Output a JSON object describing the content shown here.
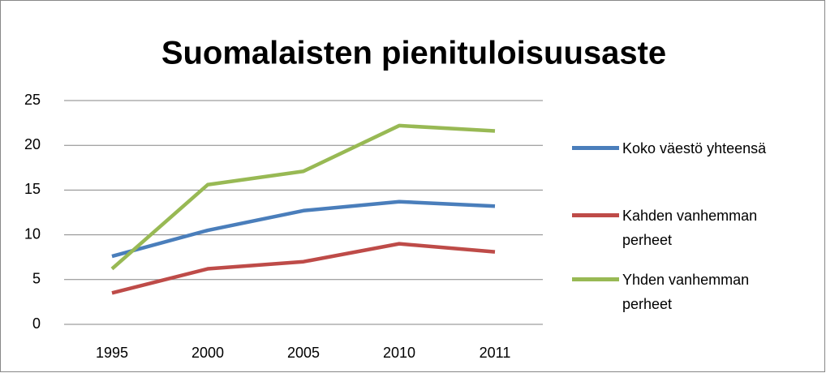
{
  "chart_data": {
    "type": "line",
    "title": "Suomalaisten pienituloisuusaste",
    "categories": [
      "1995",
      "2000",
      "2005",
      "2010",
      "2011"
    ],
    "series": [
      {
        "name": "Koko väestö yhteensä",
        "color": "#4a7ebb",
        "values": [
          7.6,
          10.5,
          12.7,
          13.7,
          13.2
        ]
      },
      {
        "name": "Kahden vanhemman perheet",
        "color": "#be4b48",
        "values": [
          3.5,
          6.2,
          7.0,
          9.0,
          8.1
        ]
      },
      {
        "name": "Yhden vanhemman perheet",
        "color": "#98b954",
        "values": [
          6.2,
          15.6,
          17.1,
          22.2,
          21.6
        ]
      }
    ],
    "ylim": [
      0,
      25
    ],
    "yticks": [
      0,
      5,
      10,
      15,
      20,
      25
    ],
    "grid": true,
    "legend": "right"
  }
}
